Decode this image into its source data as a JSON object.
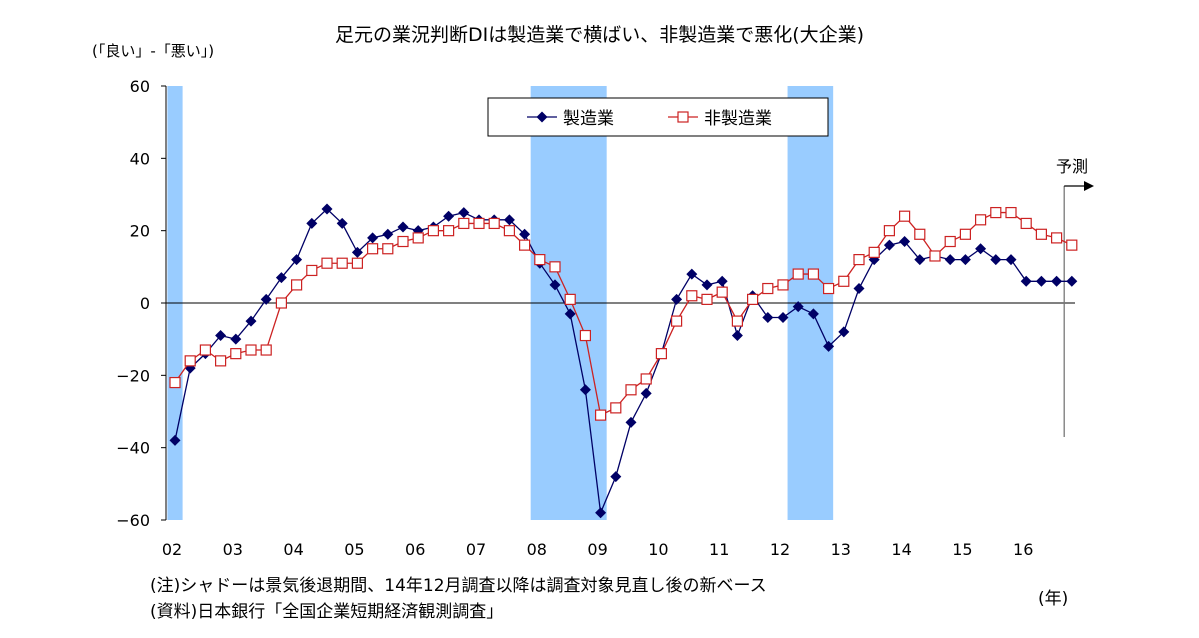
{
  "chart_data": {
    "type": "line",
    "title": "足元の業況判断DIは製造業で横ばい、非製造業で悪化(大企業)",
    "ylabel": "(「良い」-「悪い」)",
    "xlabel": "(年)",
    "ylim": [
      -60,
      60
    ],
    "yticks": [
      "60",
      "40",
      "20",
      "0",
      "−20",
      "−40",
      "−60"
    ],
    "ytick_values": [
      60,
      40,
      20,
      0,
      -20,
      -40,
      -60
    ],
    "xtick_labels": [
      "02",
      "03",
      "04",
      "05",
      "06",
      "07",
      "08",
      "09",
      "10",
      "11",
      "12",
      "13",
      "14",
      "15",
      "16"
    ],
    "x_frequency": "quarterly, 2002Q1–2016Q4",
    "legend": [
      "製造業",
      "非製造業"
    ],
    "legend_placement": "top-center",
    "series": [
      {
        "name": "製造業",
        "color": "#000066",
        "marker": "diamond-filled",
        "values": [
          -38,
          -18,
          -14,
          -9,
          -10,
          -5,
          1,
          7,
          12,
          22,
          26,
          22,
          14,
          18,
          19,
          21,
          20,
          21,
          24,
          25,
          23,
          23,
          23,
          19,
          11,
          5,
          -3,
          -24,
          -58,
          -48,
          -33,
          -25,
          -14,
          1,
          8,
          5,
          6,
          -9,
          2,
          -4,
          -4,
          -1,
          -3,
          -12,
          -8,
          4,
          12,
          16,
          17,
          12,
          13,
          12,
          12,
          15,
          12,
          12,
          6,
          6,
          6,
          6
        ]
      },
      {
        "name": "非製造業",
        "color": "#cc2222",
        "marker": "square-open",
        "values": [
          -22,
          -16,
          -13,
          -16,
          -14,
          -13,
          -13,
          0,
          5,
          9,
          11,
          11,
          11,
          15,
          15,
          17,
          18,
          20,
          20,
          22,
          22,
          22,
          20,
          16,
          12,
          10,
          1,
          -9,
          -31,
          -29,
          -24,
          -21,
          -14,
          -5,
          2,
          1,
          3,
          -5,
          1,
          4,
          5,
          8,
          8,
          4,
          6,
          12,
          14,
          20,
          24,
          19,
          13,
          17,
          19,
          23,
          25,
          25,
          22,
          19,
          18,
          16
        ]
      }
    ],
    "recession_shading_quarter_index": [
      [
        -0.5,
        0.5
      ],
      [
        23.4,
        28.4
      ],
      [
        40.3,
        43.3
      ]
    ],
    "shading_color": "#99ccff",
    "forecast_marker_quarter_index": 58.5,
    "forecast_label": "予測",
    "notes": [
      "(注)シャドーは景気後退期間、14年12月調査以降は調査対象見直し後の新ベース",
      "(資料)日本銀行「全国企業短期経済観測調査」"
    ]
  }
}
